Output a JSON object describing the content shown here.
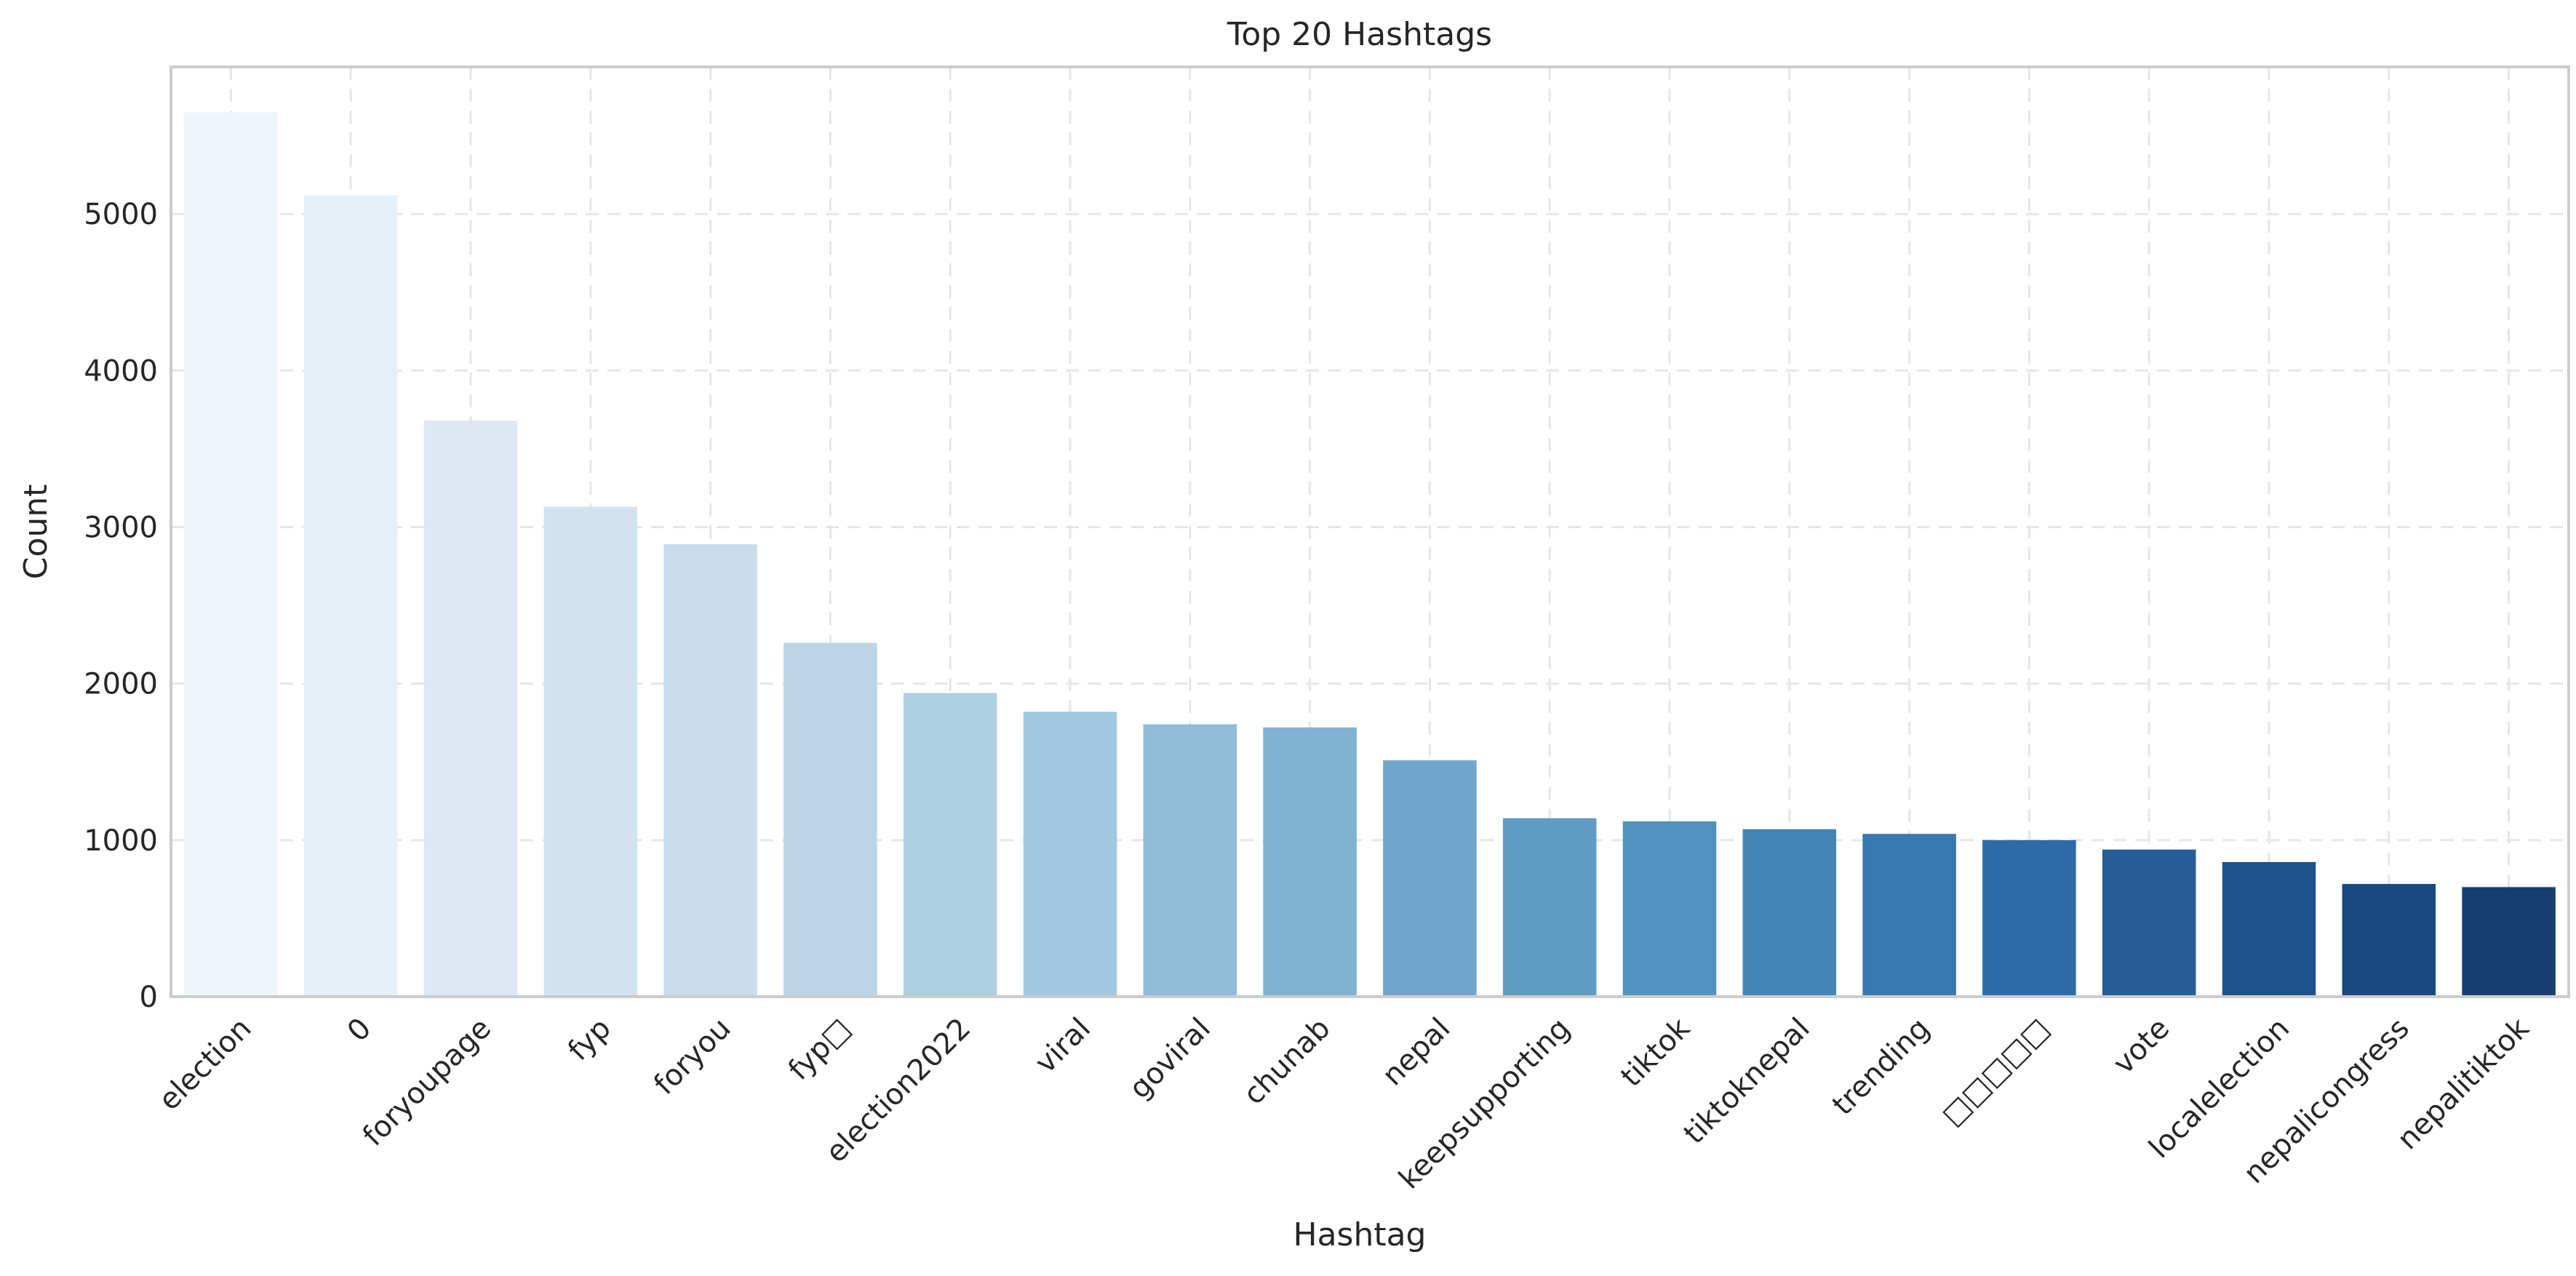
{
  "chart_data": {
    "type": "bar",
    "title": "Top 20 Hashtags",
    "xlabel": "Hashtag",
    "ylabel": "Count",
    "categories": [
      "election",
      "0",
      "foryoupage",
      "fyp",
      "foryou",
      "fyp□",
      "election2022",
      "viral",
      "goviral",
      "chunab",
      "nepal",
      "keepsupporting",
      "tiktok",
      "tiktoknepal",
      "trending",
      "□□□□□",
      "vote",
      "localelection",
      "nepalicongress",
      "nepalitiktok"
    ],
    "values": [
      5650,
      5120,
      3680,
      3130,
      2890,
      2260,
      1940,
      1820,
      1740,
      1720,
      1510,
      1140,
      1120,
      1070,
      1040,
      1000,
      940,
      860,
      720,
      700
    ],
    "yticks": [
      0,
      1000,
      2000,
      3000,
      4000,
      5000
    ],
    "ylim": [
      0,
      5940
    ],
    "grid": true,
    "colormap": "Blues",
    "bar_colors": [
      "#eff5fb",
      "#e6eff8",
      "#dde8f4",
      "#d2e3f0",
      "#c9dcec",
      "#bcd5e6",
      "#afcfe2",
      "#a2c7de",
      "#91bcd8",
      "#80b2d4",
      "#70a6cb",
      "#5f9cc4",
      "#5192be",
      "#4485b8",
      "#3979b1",
      "#2d6aa8",
      "#265d97",
      "#1e528c",
      "#184a80",
      "#163e6f"
    ]
  }
}
